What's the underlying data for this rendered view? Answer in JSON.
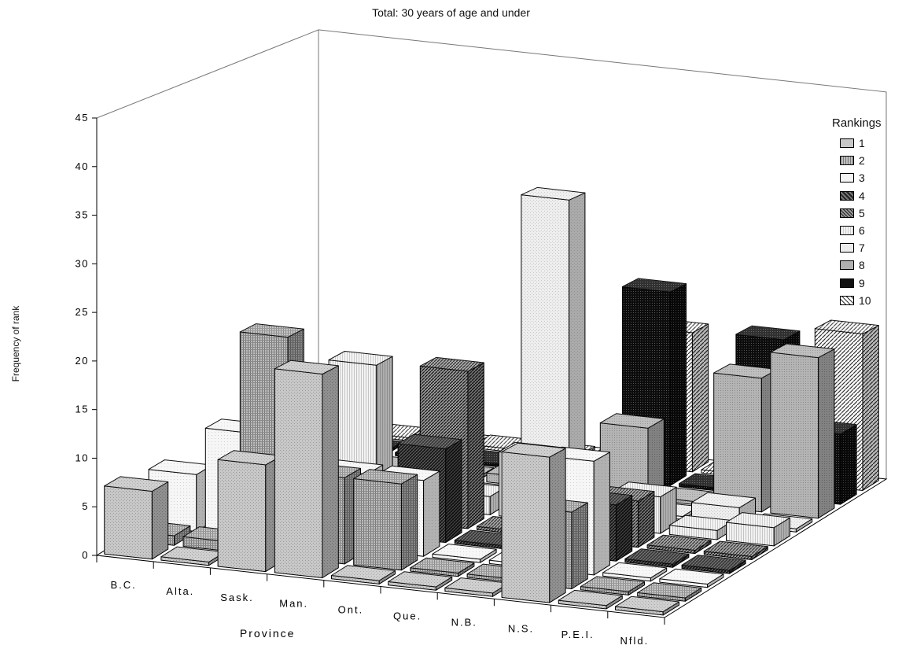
{
  "chart_data": {
    "type": "bar",
    "title": "Total: 30 years of age and under",
    "xlabel": "Province",
    "ylabel": "Frequency of rank",
    "ylim": [
      0,
      45
    ],
    "yticks": [
      "0",
      "5",
      "10",
      "15",
      "20",
      "25",
      "30",
      "35",
      "40",
      "45"
    ],
    "categories": [
      "B.C.",
      "Alta.",
      "Sask.",
      "Man.",
      "Ont.",
      "Que.",
      "N.B.",
      "N.S.",
      "P.E.I.",
      "Nfld."
    ],
    "legend_title": "Rankings",
    "legend_position": "right",
    "series": [
      {
        "name": "1",
        "values": [
          7,
          0,
          11,
          21,
          0,
          0,
          0,
          15,
          0,
          0
        ]
      },
      {
        "name": "2",
        "values": [
          1,
          1,
          23,
          9,
          9,
          0,
          0,
          8,
          0,
          0
        ]
      },
      {
        "name": "3",
        "values": [
          6,
          11,
          8,
          8,
          8,
          0,
          0,
          12,
          0,
          0
        ]
      },
      {
        "name": "4",
        "values": [
          0,
          5,
          6,
          4,
          10,
          0,
          0,
          6,
          0,
          0
        ]
      },
      {
        "name": "5",
        "values": [
          0,
          10,
          0,
          3,
          17,
          0,
          0,
          5,
          0,
          0
        ]
      },
      {
        "name": "6",
        "values": [
          0,
          13,
          15,
          2,
          2,
          7,
          1,
          4,
          1,
          2
        ]
      },
      {
        "name": "7",
        "values": [
          0,
          0,
          0,
          3,
          0,
          34,
          0,
          0,
          2,
          0
        ]
      },
      {
        "name": "8",
        "values": [
          0,
          0,
          0,
          0,
          1,
          0,
          8,
          0,
          15,
          18
        ]
      },
      {
        "name": "9",
        "values": [
          0,
          0,
          0,
          0,
          0,
          0,
          22,
          0,
          18,
          8
        ]
      },
      {
        "name": "10",
        "values": [
          0,
          0,
          0,
          0,
          0,
          0,
          16,
          0,
          13,
          18
        ]
      }
    ]
  }
}
